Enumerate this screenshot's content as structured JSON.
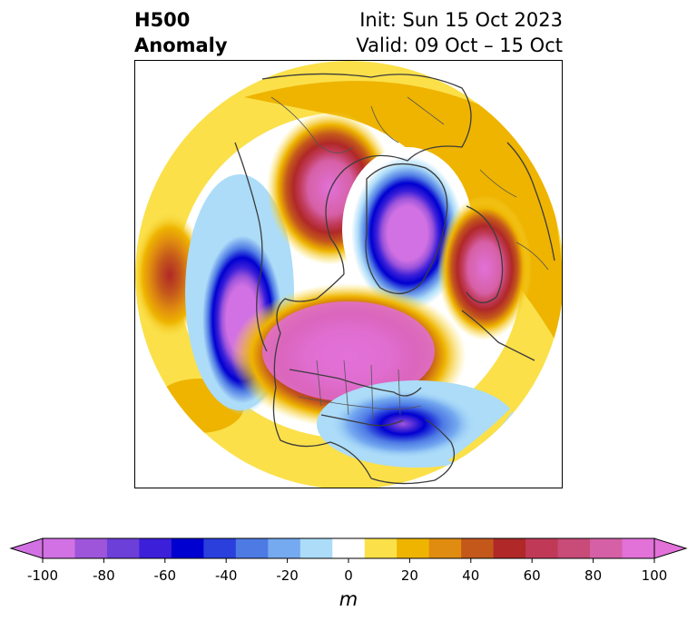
{
  "title": {
    "left_line1": "H500",
    "left_line2": "Anomaly",
    "right_line1": "Init: Sun 15 Oct 2023",
    "right_line2": "Valid: 09 Oct – 15 Oct"
  },
  "map": {
    "projection": "polar-stereographic",
    "features": [
      "coastlines",
      "country-borders",
      "state-borders"
    ],
    "anomaly_centers": [
      {
        "region": "North Pole / Arctic",
        "sign": "negative",
        "peak_m": -100
      },
      {
        "region": "Northeast Pacific off North America",
        "sign": "negative",
        "peak_m": -100
      },
      {
        "region": "Eastern Asia / Siberia",
        "sign": "positive",
        "peak_m": 90
      },
      {
        "region": "Northeastern Canada / Greenland",
        "sign": "positive",
        "peak_m": 100
      },
      {
        "region": "Northern Europe / Scandinavia",
        "sign": "positive",
        "peak_m": 90
      },
      {
        "region": "Western Atlantic east of Florida",
        "sign": "negative",
        "peak_m": -80
      },
      {
        "region": "Central North Pacific",
        "sign": "positive",
        "peak_m": 60
      }
    ]
  },
  "colorbar": {
    "unit": "m",
    "ticks": [
      "-100",
      "-80",
      "-60",
      "-40",
      "-20",
      "0",
      "20",
      "40",
      "60",
      "80",
      "100"
    ],
    "levels": [
      -100,
      -90,
      -80,
      -70,
      -60,
      -50,
      -40,
      -30,
      -20,
      -10,
      10,
      20,
      30,
      40,
      50,
      60,
      70,
      80,
      90,
      100
    ],
    "colors": [
      "#d271e4",
      "#9e55da",
      "#6b3fd8",
      "#3b1fd9",
      "#0000d0",
      "#2a3fdc",
      "#4e7ae4",
      "#75aaf0",
      "#acdcf8",
      "#ffffff",
      "#fbe04a",
      "#eeb400",
      "#e08c10",
      "#c4581b",
      "#b02828",
      "#c03a58",
      "#c84b78",
      "#d660a6",
      "#e271d8"
    ],
    "under_color": "#d271e4",
    "over_color": "#e271d8"
  }
}
